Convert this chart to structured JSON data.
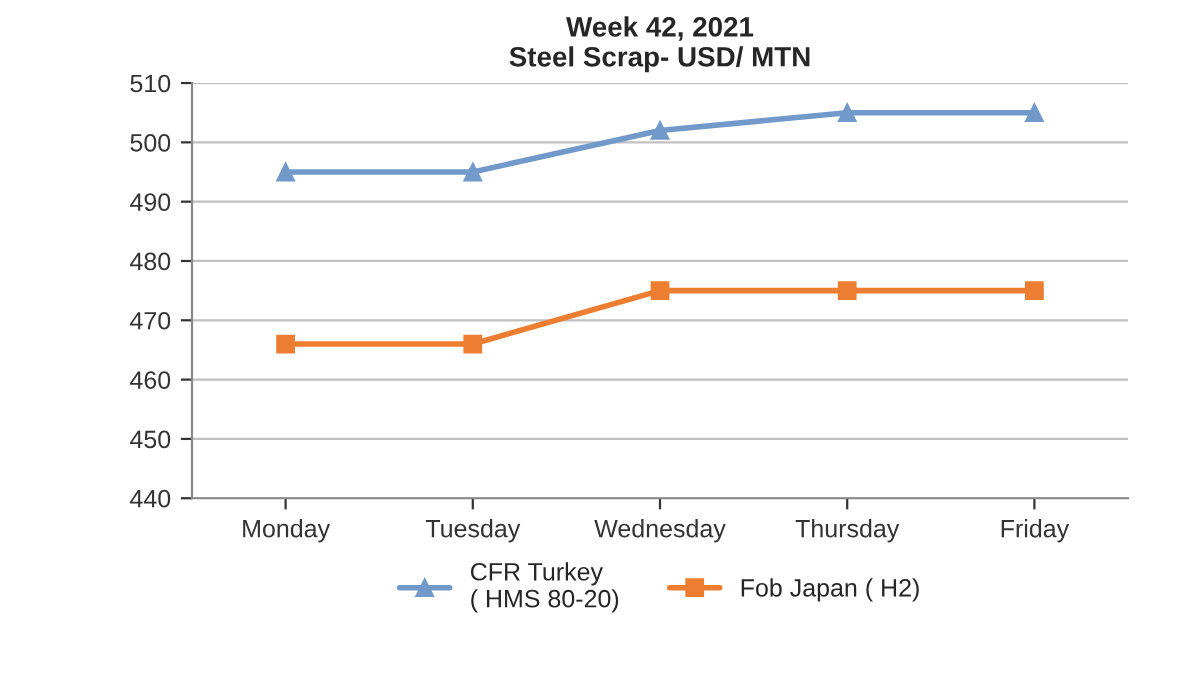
{
  "chart_data": {
    "type": "line",
    "title": "Week 42, 2021\nSteel Scrap- USD/ MTN",
    "categories": [
      "Monday",
      "Tuesday",
      "Wednesday",
      "Thursday",
      "Friday"
    ],
    "series": [
      {
        "name": "CFR Turkey\n( HMS 80-20)",
        "color": "#7199c9",
        "marker": "triangle",
        "values": [
          495,
          495,
          502,
          505,
          505
        ]
      },
      {
        "name": "Fob Japan ( H2)",
        "color": "#ed7d31",
        "marker": "square",
        "values": [
          466,
          466,
          475,
          475,
          475
        ]
      }
    ],
    "ylim": [
      440,
      510
    ],
    "yticks": [
      440,
      450,
      460,
      470,
      480,
      490,
      500,
      510
    ],
    "grid": "y",
    "legend": "bottom"
  }
}
